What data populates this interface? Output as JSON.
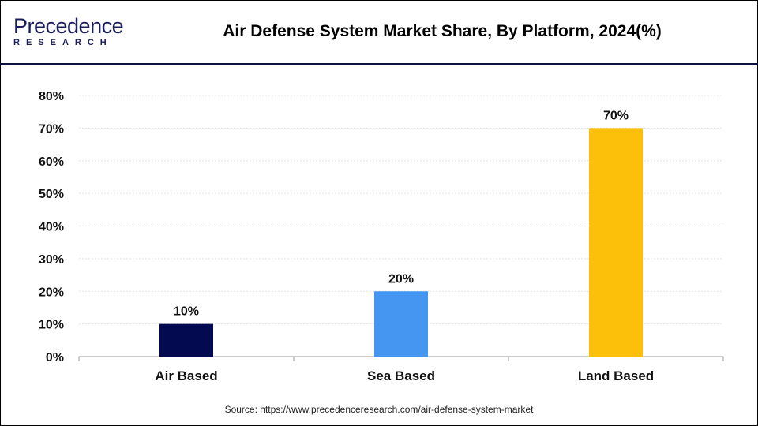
{
  "header": {
    "logo_main": "Precedence",
    "logo_sub": "RESEARCH",
    "title": "Air Defense System Market Share, By Platform, 2024(%)"
  },
  "footer": {
    "source": "Source: https://www.precedenceresearch.com/air-defense-system-market"
  },
  "chart_data": {
    "type": "bar",
    "title": "Air Defense System Market Share, By Platform, 2024(%)",
    "categories": [
      "Air Based",
      "Sea Based",
      "Land Based"
    ],
    "values": [
      10,
      20,
      70
    ],
    "data_labels": [
      "10%",
      "20%",
      "70%"
    ],
    "colors": [
      "#030a4f",
      "#4596f0",
      "#fcbf0a"
    ],
    "xlabel": "",
    "ylabel": "",
    "ylim": [
      0,
      80
    ],
    "yticks": [
      0,
      10,
      20,
      30,
      40,
      50,
      60,
      70,
      80
    ],
    "ytick_labels": [
      "0%",
      "10%",
      "20%",
      "30%",
      "40%",
      "50%",
      "60%",
      "70%",
      "80%"
    ],
    "grid": true,
    "legend": "none"
  }
}
